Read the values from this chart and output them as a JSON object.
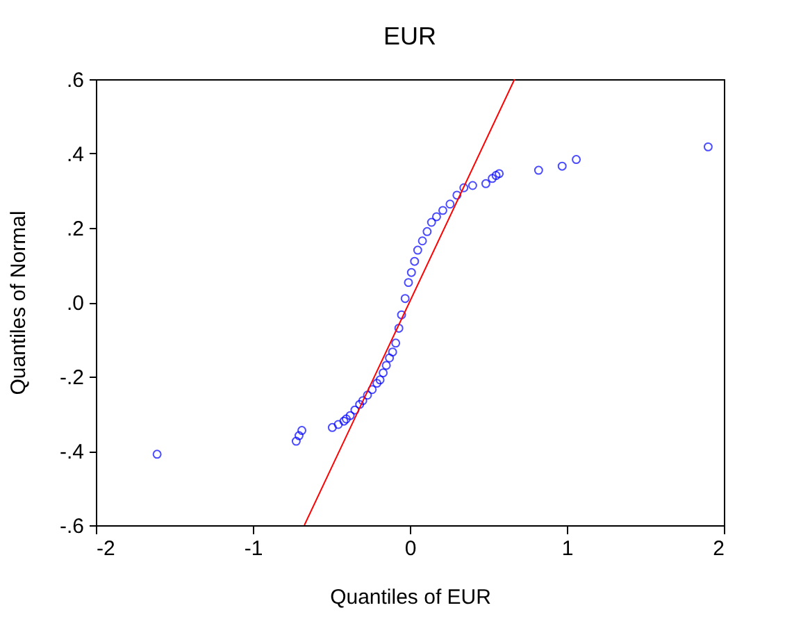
{
  "chart_data": {
    "type": "scatter",
    "title": "EUR",
    "xlabel": "Quantiles of EUR",
    "ylabel": "Quantiles of Normal",
    "xlim": [
      -2,
      2
    ],
    "xticks": [
      -2,
      -1,
      0,
      1,
      2
    ],
    "ylim": [
      -0.6,
      0.6
    ],
    "yticks": [
      {
        "value": -0.6,
        "label": "-.6"
      },
      {
        "value": -0.4,
        "label": "-.4"
      },
      {
        "value": -0.2,
        "label": "-.2"
      },
      {
        "value": 0,
        "label": ".0"
      },
      {
        "value": 0.2,
        "label": ".2"
      },
      {
        "value": 0.4,
        "label": ".4"
      },
      {
        "value": 0.6,
        "label": ".6"
      }
    ],
    "grid": false,
    "series": [
      {
        "marker": "circle",
        "color": "#0000ff",
        "x": [
          -1.61,
          -0.724,
          -0.706,
          -0.688,
          -0.494,
          -0.456,
          -0.42,
          -0.405,
          -0.38,
          -0.35,
          -0.32,
          -0.3,
          -0.27,
          -0.24,
          -0.21,
          -0.19,
          -0.17,
          -0.15,
          -0.13,
          -0.11,
          -0.09,
          -0.07,
          -0.053,
          -0.03,
          -0.009,
          0.01,
          0.03,
          0.05,
          0.08,
          0.11,
          0.138,
          0.17,
          0.21,
          0.256,
          0.3,
          0.344,
          0.4,
          0.484,
          0.525,
          0.549,
          0.569,
          0.82,
          0.97,
          1.06,
          1.9
        ],
        "values": [
          -0.409,
          -0.374,
          -0.359,
          -0.345,
          -0.337,
          -0.329,
          -0.32,
          -0.314,
          -0.305,
          -0.29,
          -0.275,
          -0.265,
          -0.25,
          -0.235,
          -0.218,
          -0.209,
          -0.19,
          -0.17,
          -0.15,
          -0.134,
          -0.11,
          -0.07,
          -0.034,
          0.01,
          0.053,
          0.08,
          0.11,
          0.14,
          0.165,
          0.19,
          0.215,
          0.23,
          0.247,
          0.264,
          0.288,
          0.308,
          0.314,
          0.319,
          0.333,
          0.341,
          0.346,
          0.355,
          0.366,
          0.384,
          0.418
        ]
      },
      {
        "type": "line",
        "color": "#ff0000",
        "x": [
          -0.672,
          0.667
        ],
        "values": [
          -0.6,
          0.6
        ]
      }
    ]
  }
}
